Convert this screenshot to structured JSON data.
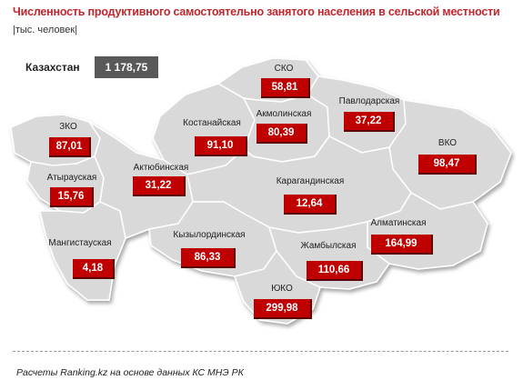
{
  "title": "Численность продуктивного самостоятельно занятого населения в сельской местности",
  "subtitle": "|тыс. человек|",
  "total": {
    "label": "Казахстан",
    "value": "1 178,75"
  },
  "regions": [
    {
      "name": "СКО",
      "value": "58,81"
    },
    {
      "name": "Павлодарская",
      "value": "37,22"
    },
    {
      "name": "ВКО",
      "value": "98,47"
    },
    {
      "name": "Костанайская",
      "value": "91,10"
    },
    {
      "name": "Акмолинская",
      "value": "80,39"
    },
    {
      "name": "ЗКО",
      "value": "87,01"
    },
    {
      "name": "Атырауская",
      "value": "15,76"
    },
    {
      "name": "Актюбинская",
      "value": "31,22"
    },
    {
      "name": "Карагандинская",
      "value": "12,64"
    },
    {
      "name": "Мангистауская",
      "value": "4,18"
    },
    {
      "name": "Кызылординская",
      "value": "86,33"
    },
    {
      "name": "Алматинская",
      "value": "164,99"
    },
    {
      "name": "Жамбылская",
      "value": "110,66"
    },
    {
      "name": "ЮКО",
      "value": "299,98"
    }
  ],
  "footer": "Расчеты Ranking.kz на основе данных КС МНЭ РК",
  "colors": {
    "accent": "#c00000",
    "title": "#c0272d",
    "map_fill": "#d9d9d9",
    "total_box": "#595959"
  }
}
